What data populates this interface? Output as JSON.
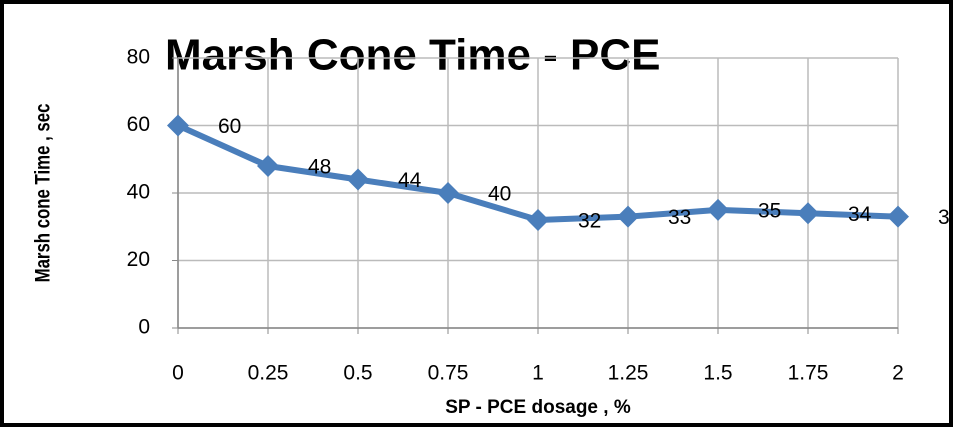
{
  "chart_data": {
    "type": "line",
    "title": "Marsh Cone Time - PCE",
    "xlabel": "SP - PCE dosage , %",
    "ylabel": "Marsh cone Time , sec",
    "x": [
      0,
      0.25,
      0.5,
      0.75,
      1,
      1.25,
      1.5,
      1.75,
      2
    ],
    "series": [
      {
        "name": "Marsh cone time",
        "color": "#4a7ebb",
        "values": [
          60,
          48,
          44,
          40,
          32,
          33,
          35,
          34,
          33
        ]
      }
    ],
    "xlim": [
      0,
      2
    ],
    "xticks": [
      0,
      0.25,
      0.5,
      0.75,
      1,
      1.25,
      1.5,
      1.75,
      2
    ],
    "ylim": [
      0,
      80
    ],
    "yticks": [
      0,
      20,
      40,
      60,
      80
    ],
    "grid": true,
    "data_labels": true
  }
}
